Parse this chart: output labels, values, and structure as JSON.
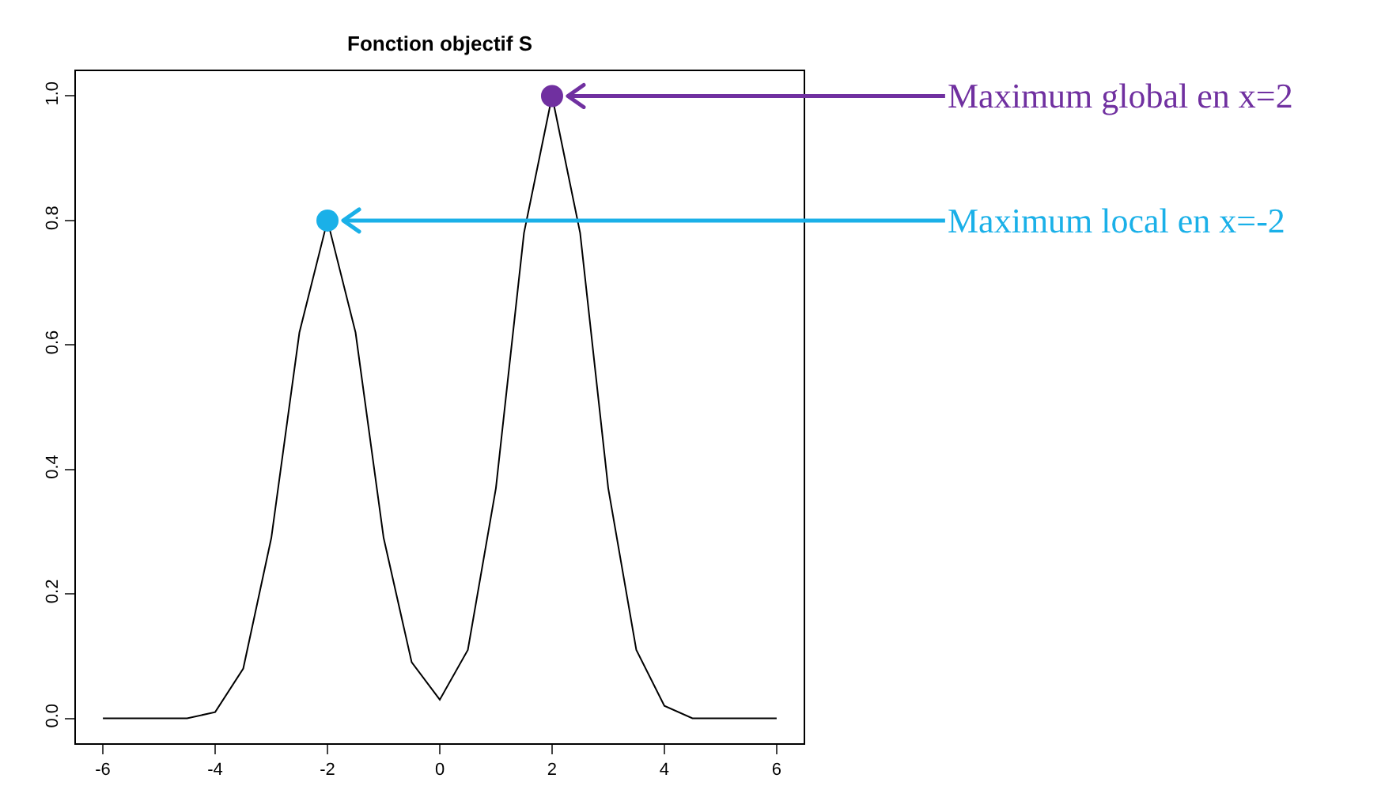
{
  "chart_data": {
    "type": "line",
    "title": "Fonction objectif S",
    "xlim": [
      -6.48,
      6.48
    ],
    "xticks": [
      -6,
      -4,
      -2,
      0,
      2,
      4,
      6
    ],
    "ylim": [
      -0.04,
      1.04
    ],
    "yticks": [
      {
        "value": 0,
        "label": "0.0"
      },
      0.2,
      0.4,
      0.6,
      0.8,
      {
        "value": 1,
        "label": "1.0"
      }
    ],
    "grid": false,
    "series": [
      {
        "color": "#000000",
        "x": [
          -6,
          -5.5,
          -5,
          -4.5,
          -4,
          -3.5,
          -3,
          -2.5,
          -2,
          -1.5,
          -1,
          -0.5,
          0,
          0.5,
          1,
          1.5,
          2,
          2.5,
          3,
          3.5,
          4,
          4.5,
          5,
          5.5,
          6
        ],
        "values": [
          0,
          0,
          0,
          0,
          0.01,
          0.08,
          0.29,
          0.62,
          0.8,
          0.62,
          0.29,
          0.09,
          0.03,
          0.11,
          0.37,
          0.78,
          1.0,
          0.78,
          0.37,
          0.11,
          0.02,
          0,
          0,
          0,
          0
        ]
      },
      {
        "type": "scatter",
        "marker": "circle",
        "x": [
          2,
          -2
        ],
        "values": [
          1.0,
          0.8
        ],
        "colors": [
          "#7030a0",
          "#1ab0e8"
        ]
      }
    ],
    "annotations": [
      {
        "text": "Maximum global en x=2",
        "x": 2,
        "y": 1.0
      },
      {
        "text": "Maximum local en x=-2",
        "x": -2,
        "y": 0.8
      }
    ]
  }
}
